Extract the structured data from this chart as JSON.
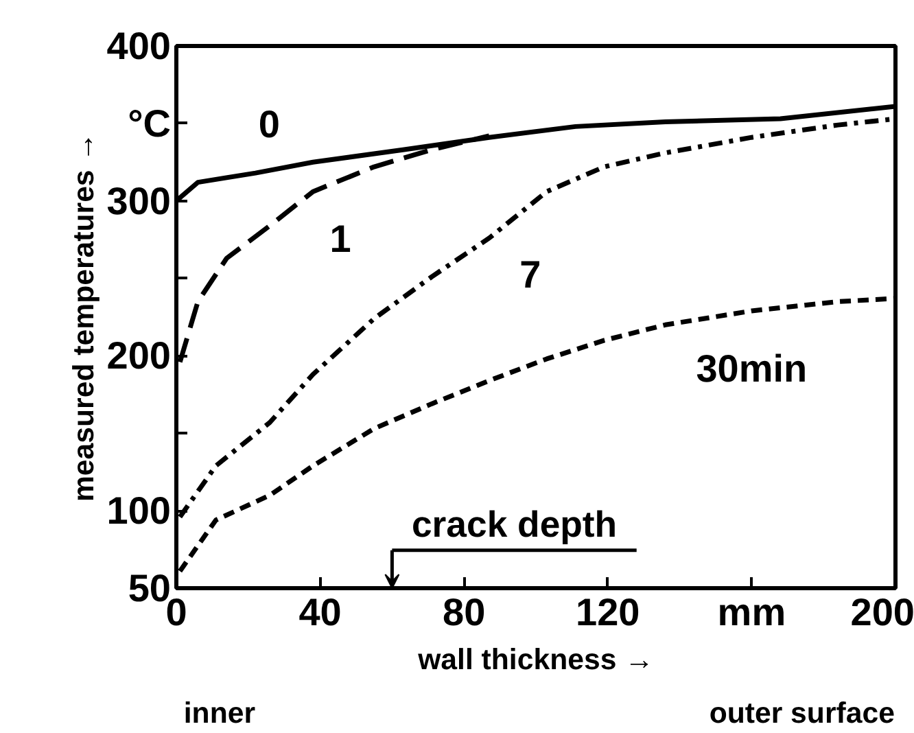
{
  "chart_data": {
    "type": "line",
    "xlabel": "wall thickness →",
    "ylabel": "measured temperatures →",
    "xlim": [
      0,
      200
    ],
    "ylim": [
      50,
      400
    ],
    "xticks": [
      0,
      40,
      80,
      120,
      {
        "value": 160,
        "label": "mm"
      },
      200
    ],
    "yticks": [
      50,
      100,
      {
        "value": 150,
        "label": null
      },
      200,
      {
        "value": 250,
        "label": null
      },
      300,
      {
        "value": 350,
        "label": "°C"
      },
      400
    ],
    "grid": false,
    "series": [
      {
        "name": "0",
        "color": "#000000",
        "line_style": "solid",
        "x": [
          0,
          6,
          22,
          38,
          63,
          87,
          111,
          136,
          168,
          200
        ],
        "values": [
          300,
          312,
          318,
          325,
          333,
          341,
          348,
          351,
          353,
          361
        ]
      },
      {
        "name": "1",
        "color": "#000000",
        "line_style": "longdash",
        "x": [
          1,
          6,
          14,
          26,
          38,
          55,
          71,
          87
        ],
        "values": [
          196,
          235,
          263,
          284,
          306,
          322,
          333,
          342
        ]
      },
      {
        "name": "7",
        "color": "#000000",
        "line_style": "dashdot",
        "x": [
          1,
          11,
          26,
          38,
          55,
          71,
          87,
          103,
          119,
          136,
          160,
          184,
          200
        ],
        "values": [
          96,
          129,
          157,
          188,
          224,
          251,
          276,
          306,
          322,
          331,
          341,
          349,
          353
        ]
      },
      {
        "name": "30min",
        "color": "#000000",
        "line_style": "dashed",
        "x": [
          1,
          11,
          26,
          38,
          55,
          71,
          87,
          103,
          119,
          136,
          160,
          184,
          200
        ],
        "values": [
          61,
          94,
          110,
          129,
          153,
          169,
          184,
          198,
          210,
          220,
          229,
          235,
          237
        ]
      }
    ],
    "annotations": [
      "crack depth",
      "inner",
      "outer surface"
    ]
  }
}
